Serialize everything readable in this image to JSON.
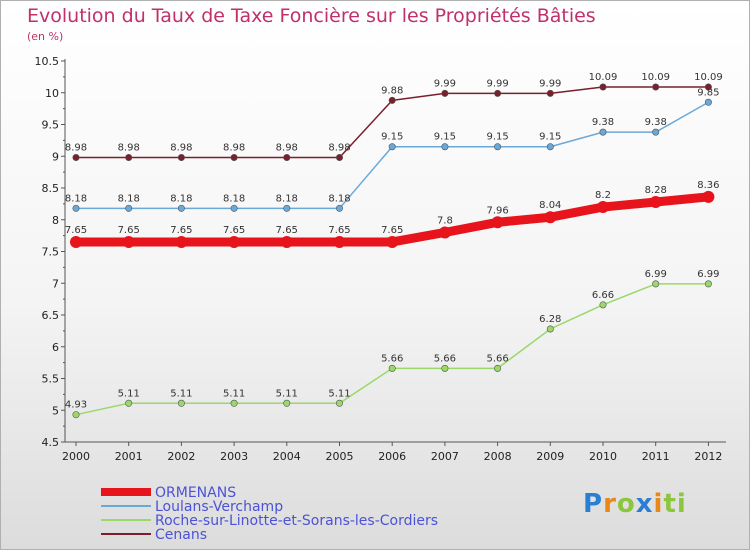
{
  "chart_data": {
    "type": "line",
    "title": "Evolution du Taux de Taxe Foncière sur les Propriétés Bâties",
    "subtitle": "(en %)",
    "xlabel": "",
    "ylabel": "",
    "categories": [
      "2000",
      "2001",
      "2002",
      "2003",
      "2004",
      "2005",
      "2006",
      "2007",
      "2008",
      "2009",
      "2010",
      "2011",
      "2012"
    ],
    "ylim": [
      4.5,
      10.5
    ],
    "yticks": [
      4.5,
      5,
      5.5,
      6,
      6.5,
      7,
      7.5,
      8,
      8.5,
      9,
      9.5,
      10,
      10.5
    ],
    "ytick_labels": [
      "4.5",
      "5",
      "5.5",
      "6",
      "6.5",
      "7",
      "7.5",
      "8",
      "8.5",
      "9",
      "9.5",
      "10",
      "10.5"
    ],
    "legend_position": "bottom-left",
    "grid": false,
    "series": [
      {
        "name": "Cenans",
        "color": "#7a1f2b",
        "values": [
          8.98,
          8.98,
          8.98,
          8.98,
          8.98,
          8.98,
          9.88,
          9.99,
          9.99,
          9.99,
          10.09,
          10.09,
          10.09
        ],
        "labels": [
          "8.98",
          "8.98",
          "8.98",
          "8.98",
          "8.98",
          "8.98",
          "9.88",
          "9.99",
          "9.99",
          "9.99",
          "10.09",
          "10.09",
          "10.09"
        ]
      },
      {
        "name": "Loulans-Verchamp",
        "color": "#6aa8d8",
        "values": [
          8.18,
          8.18,
          8.18,
          8.18,
          8.18,
          8.18,
          9.15,
          9.15,
          9.15,
          9.15,
          9.38,
          9.38,
          9.85
        ],
        "labels": [
          "8.18",
          "8.18",
          "8.18",
          "8.18",
          "8.18",
          "8.18",
          "9.15",
          "9.15",
          "9.15",
          "9.15",
          "9.38",
          "9.38",
          "9.85"
        ]
      },
      {
        "name": "ORMENANS",
        "color": "#e8141b",
        "values": [
          7.65,
          7.65,
          7.65,
          7.65,
          7.65,
          7.65,
          7.65,
          7.8,
          7.96,
          8.04,
          8.2,
          8.28,
          8.36
        ],
        "labels": [
          "7.65",
          "7.65",
          "7.65",
          "7.65",
          "7.65",
          "7.65",
          "7.65",
          "7.8",
          "7.96",
          "8.04",
          "8.2",
          "8.28",
          "8.36"
        ]
      },
      {
        "name": "Roche-sur-Linotte-et-Sorans-les-Cordiers",
        "color": "#9ad86a",
        "values": [
          4.93,
          5.11,
          5.11,
          5.11,
          5.11,
          5.11,
          5.66,
          5.66,
          5.66,
          6.28,
          6.66,
          6.99,
          6.99
        ],
        "labels": [
          "4.93",
          "5.11",
          "5.11",
          "5.11",
          "5.11",
          "5.11",
          "5.66",
          "5.66",
          "5.66",
          "6.28",
          "6.66",
          "6.99",
          "6.99"
        ]
      }
    ],
    "legend": [
      "ORMENANS",
      "Loulans-Verchamp",
      "Roche-sur-Linotte-et-Sorans-les-Cordiers",
      "Cenans"
    ]
  },
  "logo": {
    "letters": [
      "P",
      "r",
      "o",
      "x",
      "i",
      "t",
      "i"
    ]
  }
}
